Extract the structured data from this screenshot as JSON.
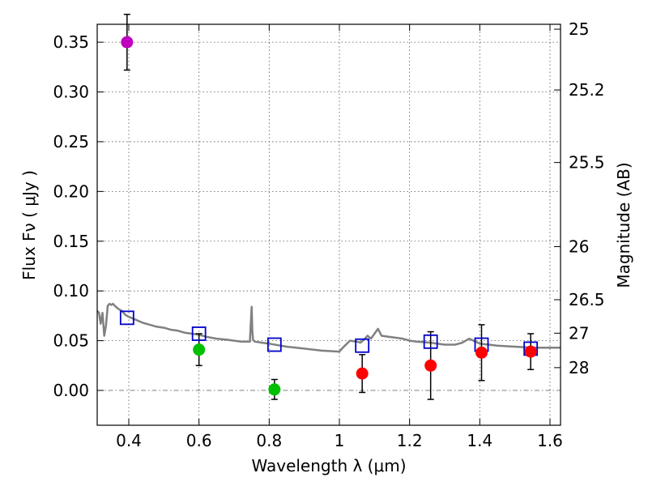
{
  "chart_data": {
    "type": "scatter",
    "xlabel": "Wavelength  λ (μm)",
    "ylabel": "Flux  Fν  ( μJy )",
    "y2label": "Magnitude (AB)",
    "xlim": [
      0.31,
      1.63
    ],
    "ylim": [
      -0.035,
      0.368
    ],
    "x_ticks": [
      0.4,
      0.6,
      0.8,
      1.0,
      1.2,
      1.4,
      1.6
    ],
    "x_tick_labels": [
      "0.4",
      "0.6",
      "0.8",
      "1",
      "1.2",
      "1.4",
      "1.6"
    ],
    "y_ticks": [
      0.0,
      0.05,
      0.1,
      0.15,
      0.2,
      0.25,
      0.3,
      0.35
    ],
    "y_tick_labels": [
      "0.00",
      "0.05",
      "0.10",
      "0.15",
      "0.20",
      "0.25",
      "0.30",
      "0.35"
    ],
    "y2_ticks": [
      {
        "label": "25",
        "mag": 25.0
      },
      {
        "label": "25.2",
        "mag": 25.2
      },
      {
        "label": "25.5",
        "mag": 25.5
      },
      {
        "label": "26",
        "mag": 26.0
      },
      {
        "label": "26.5",
        "mag": 26.5
      },
      {
        "label": "27",
        "mag": 27.0
      },
      {
        "label": "28",
        "mag": 28.0
      }
    ],
    "grid": true,
    "zero_line": "dash-dot",
    "model_spectrum": {
      "color": "#808080",
      "x": [
        0.31,
        0.315,
        0.32,
        0.325,
        0.33,
        0.335,
        0.34,
        0.345,
        0.35,
        0.355,
        0.36,
        0.37,
        0.38,
        0.39,
        0.4,
        0.42,
        0.44,
        0.46,
        0.48,
        0.5,
        0.52,
        0.54,
        0.56,
        0.58,
        0.6,
        0.62,
        0.65,
        0.68,
        0.7,
        0.72,
        0.745,
        0.75,
        0.752,
        0.754,
        0.756,
        0.76,
        0.78,
        0.8,
        0.85,
        0.9,
        0.95,
        1.0,
        1.01,
        1.03,
        1.05,
        1.06,
        1.07,
        1.08,
        1.09,
        1.1,
        1.11,
        1.12,
        1.14,
        1.16,
        1.18,
        1.2,
        1.22,
        1.26,
        1.3,
        1.33,
        1.35,
        1.37,
        1.4,
        1.45,
        1.5,
        1.55,
        1.6,
        1.63
      ],
      "y": [
        0.08,
        0.078,
        0.067,
        0.078,
        0.055,
        0.065,
        0.085,
        0.087,
        0.086,
        0.087,
        0.085,
        0.082,
        0.08,
        0.076,
        0.074,
        0.071,
        0.068,
        0.066,
        0.064,
        0.063,
        0.061,
        0.06,
        0.058,
        0.057,
        0.056,
        0.054,
        0.052,
        0.051,
        0.05,
        0.049,
        0.049,
        0.084,
        0.06,
        0.051,
        0.05,
        0.049,
        0.048,
        0.047,
        0.044,
        0.042,
        0.04,
        0.039,
        0.043,
        0.05,
        0.049,
        0.048,
        0.051,
        0.055,
        0.052,
        0.057,
        0.062,
        0.055,
        0.054,
        0.053,
        0.052,
        0.05,
        0.049,
        0.048,
        0.046,
        0.046,
        0.048,
        0.052,
        0.047,
        0.045,
        0.044,
        0.043,
        0.043,
        0.043
      ]
    },
    "model_points": {
      "marker": "square",
      "color": "#0000cc",
      "x": [
        0.395,
        0.6,
        0.815,
        1.065,
        1.26,
        1.405,
        1.545
      ],
      "y": [
        0.073,
        0.057,
        0.046,
        0.045,
        0.049,
        0.046,
        0.042
      ]
    },
    "observed": [
      {
        "x": 0.395,
        "y": 0.35,
        "err": 0.028,
        "color": "#bf00bf"
      },
      {
        "x": 0.6,
        "y": 0.041,
        "err": 0.016,
        "color": "#00c000"
      },
      {
        "x": 0.815,
        "y": 0.001,
        "err": 0.01,
        "color": "#00c000"
      },
      {
        "x": 1.065,
        "y": 0.017,
        "err": 0.019,
        "color": "#ff0000"
      },
      {
        "x": 1.26,
        "y": 0.025,
        "err": 0.034,
        "color": "#ff0000"
      },
      {
        "x": 1.405,
        "y": 0.038,
        "err": 0.028,
        "color": "#ff0000"
      },
      {
        "x": 1.545,
        "y": 0.039,
        "err": 0.018,
        "color": "#ff0000"
      }
    ]
  }
}
